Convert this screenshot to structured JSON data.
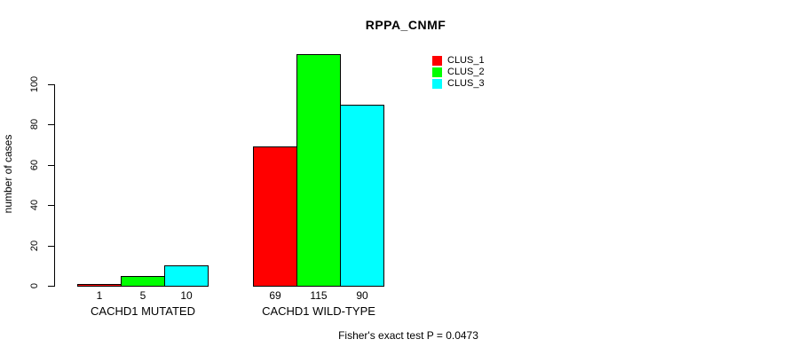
{
  "chart_data": {
    "type": "bar",
    "title": "RPPA_CNMF",
    "xlabel": "",
    "ylabel": "number of cases",
    "categories": [
      "CACHD1 MUTATED",
      "CACHD1 WILD-TYPE"
    ],
    "series": [
      {
        "name": "CLUS_1",
        "color": "#FF0000",
        "values": [
          1,
          69
        ]
      },
      {
        "name": "CLUS_2",
        "color": "#00FF00",
        "values": [
          5,
          115
        ]
      },
      {
        "name": "CLUS_3",
        "color": "#00FFFF",
        "values": [
          10,
          90
        ]
      }
    ],
    "yticks": [
      0,
      20,
      40,
      60,
      80,
      100
    ],
    "ylim": [
      0,
      115
    ],
    "grid": false,
    "bar_value_labels_shown": true,
    "legend_position": "top-right",
    "annotation": "Fisher's exact test P = 0.0473",
    "axis_color": "#000000",
    "background_color": "#FFFFFF"
  }
}
